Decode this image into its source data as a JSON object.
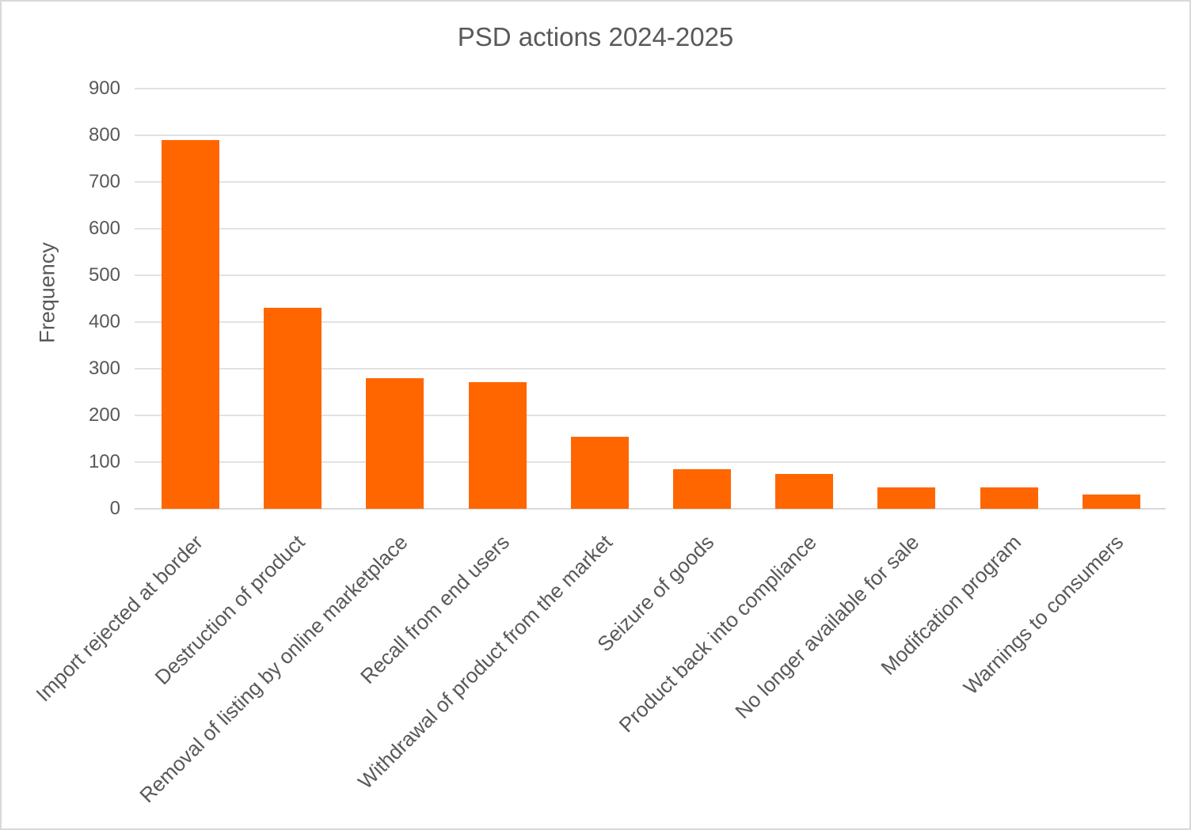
{
  "page": {
    "title": "PSD actions 2024-2025"
  },
  "chart_data": {
    "type": "bar",
    "title": "PSD actions 2024-2025",
    "xlabel": "",
    "ylabel": "Frequency",
    "categories": [
      "Import rejected at border",
      "Destruction of product",
      "Removal of listing by online marketplace",
      "Recall from end users",
      "Withdrawal of product from the market",
      "Seizure of goods",
      "Product back into compliance",
      "No longer available for sale",
      "Modifcation program",
      "Warnings to consumers"
    ],
    "values": [
      790,
      430,
      280,
      272,
      155,
      85,
      75,
      46,
      45,
      30
    ],
    "ylim": [
      0,
      900
    ],
    "ytick_step": 100,
    "grid": true,
    "legend": false,
    "x_label_rotation_deg": 45,
    "colors": {
      "bar": "#ff6600",
      "text": "#595959",
      "gridline": "#e2e2e2",
      "axis_line": "#d9d9d9",
      "background": "#ffffff",
      "border": "#d9d9d9"
    }
  }
}
